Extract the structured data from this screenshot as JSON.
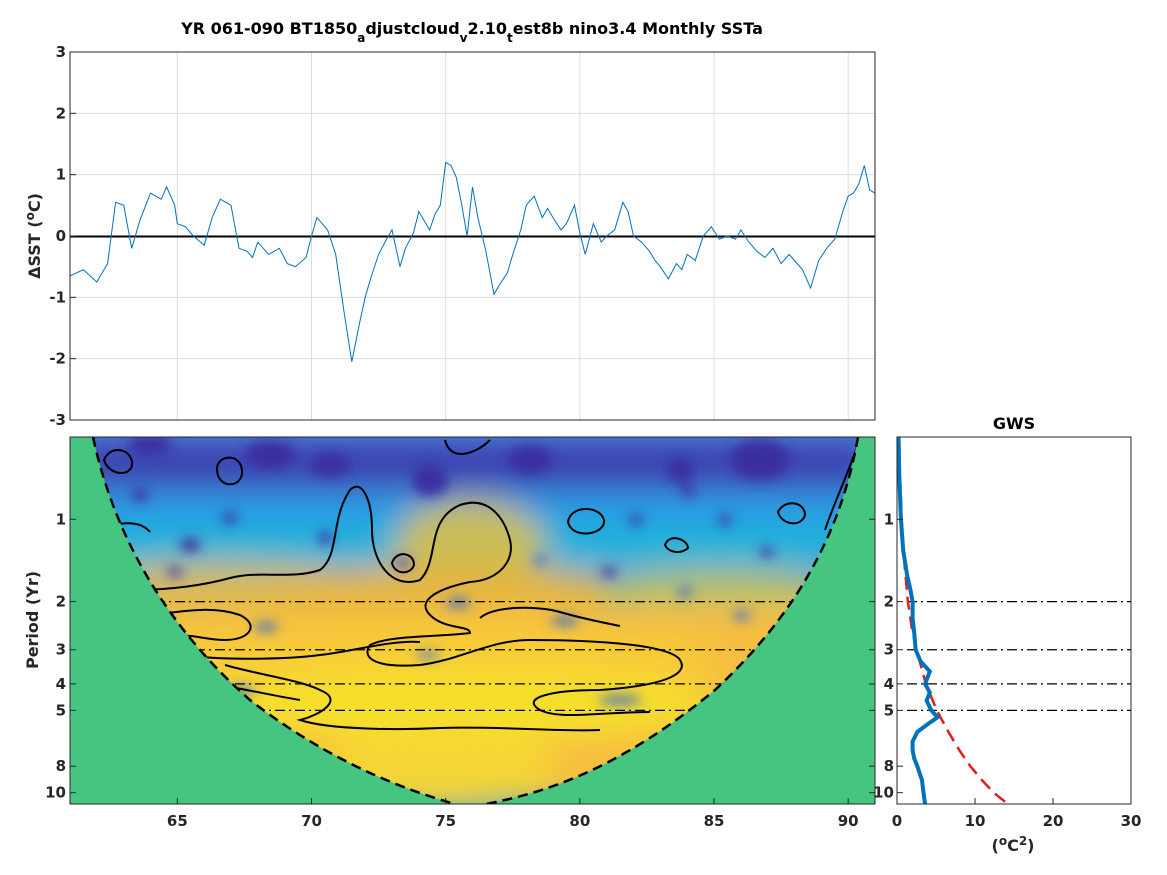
{
  "chart_data": [
    {
      "type": "line",
      "title": {
        "prefix": "YR 061-090 BT1850",
        "sub1": "a",
        "mid1": "djustcloud",
        "sub2": "v",
        "mid2": "2.10",
        "sub3": "t",
        "suffix": "est8b nino3.4 Monthly SSTa"
      },
      "xlabel": "",
      "ylabel": {
        "pre": "ΔSST (",
        "sup": "o",
        "post": "C)"
      },
      "xlim": [
        61,
        91
      ],
      "ylim": [
        -3,
        3
      ],
      "yticks": [
        -3,
        -2,
        -1,
        0,
        1,
        2,
        3
      ],
      "grid": true,
      "color": "#0072BD",
      "zero_line": 0,
      "series": [
        {
          "x": [
            61,
            61.5,
            62,
            62.4,
            62.7,
            63,
            63.3,
            63.6,
            64,
            64.4,
            64.6,
            64.9,
            65,
            65.3,
            65.6,
            66,
            66.3,
            66.6,
            67,
            67.3,
            67.6,
            67.8,
            68,
            68.4,
            68.8,
            69.1,
            69.4,
            69.8,
            70,
            70.2,
            70.6,
            70.9,
            71.2,
            71.5,
            71.8,
            72,
            72.2,
            72.5,
            72.8,
            73,
            73.3,
            73.5,
            73.8,
            74,
            74.2,
            74.4,
            74.6,
            74.8,
            75,
            75.2,
            75.4,
            75.6,
            75.8,
            76,
            76.2,
            76.5,
            76.8,
            77,
            77.3,
            77.5,
            77.8,
            78,
            78.3,
            78.6,
            78.8,
            79,
            79.3,
            79.5,
            79.8,
            80,
            80.2,
            80.5,
            80.8,
            81,
            81.3,
            81.6,
            81.8,
            82,
            82.3,
            82.6,
            82.8,
            83,
            83.3,
            83.6,
            83.8,
            84,
            84.3,
            84.6,
            84.9,
            85.2,
            85.5,
            85.8,
            86,
            86.3,
            86.6,
            86.9,
            87.2,
            87.5,
            87.8,
            88,
            88.3,
            88.6,
            88.9,
            89.2,
            89.5,
            89.8,
            90,
            90.2,
            90.4,
            90.6,
            90.8,
            91
          ],
          "y": [
            -0.65,
            -0.55,
            -0.75,
            -0.45,
            0.55,
            0.5,
            -0.2,
            0.25,
            0.7,
            0.6,
            0.8,
            0.5,
            0.2,
            0.15,
            0,
            -0.15,
            0.3,
            0.6,
            0.5,
            -0.2,
            -0.25,
            -0.35,
            -0.1,
            -0.3,
            -0.2,
            -0.45,
            -0.5,
            -0.35,
            0,
            0.3,
            0.1,
            -0.3,
            -1.2,
            -2.05,
            -1.4,
            -1.0,
            -0.7,
            -0.3,
            -0.05,
            0.1,
            -0.5,
            -0.2,
            0.05,
            0.4,
            0.25,
            0.1,
            0.35,
            0.5,
            1.2,
            1.15,
            0.95,
            0.5,
            0.0,
            0.8,
            0.3,
            -0.25,
            -0.95,
            -0.8,
            -0.6,
            -0.3,
            0.1,
            0.5,
            0.65,
            0.3,
            0.45,
            0.3,
            0.1,
            0.2,
            0.5,
            0.05,
            -0.3,
            0.2,
            -0.1,
            0.0,
            0.1,
            0.55,
            0.4,
            0.0,
            -0.1,
            -0.25,
            -0.4,
            -0.5,
            -0.7,
            -0.45,
            -0.55,
            -0.3,
            -0.4,
            0.0,
            0.15,
            -0.05,
            0.0,
            -0.05,
            0.1,
            -0.1,
            -0.25,
            -0.35,
            -0.2,
            -0.45,
            -0.3,
            -0.4,
            -0.55,
            -0.85,
            -0.4,
            -0.2,
            -0.05,
            0.4,
            0.65,
            0.7,
            0.85,
            1.15,
            0.75,
            0.7
          ]
        }
      ]
    },
    {
      "type": "heatmap",
      "xlabel": "",
      "ylabel": "Period (Yr)",
      "xlim": [
        61,
        91
      ],
      "xticks": [
        65,
        70,
        75,
        80,
        85,
        90
      ],
      "yscale": "log",
      "ylim": [
        0.5,
        11
      ],
      "yticks": [
        1,
        2,
        3,
        4,
        5,
        8,
        10
      ],
      "reference_periods": [
        2,
        3,
        4,
        5
      ],
      "colormap": "parula",
      "outside_cone_color": "#45C580"
    },
    {
      "type": "line",
      "title": "GWS",
      "xlabel": {
        "pre": "(",
        "sup1": "o",
        "mid": "C",
        "sup2": "2",
        "post": ")"
      },
      "ylabel": "",
      "xlim": [
        0,
        30
      ],
      "xticks": [
        0,
        10,
        20,
        30
      ],
      "yscale": "log",
      "ylim": [
        0.5,
        11
      ],
      "yticks": [
        1,
        2,
        3,
        4,
        5,
        8,
        10
      ],
      "reference_periods": [
        2,
        3,
        4,
        5
      ],
      "series": [
        {
          "color": "#0072BD",
          "style": "solid",
          "period": [
            0.5,
            0.7,
            1,
            1.3,
            1.6,
            1.8,
            2,
            2.3,
            2.6,
            3,
            3.3,
            3.6,
            4,
            4.3,
            4.6,
            5,
            5.3,
            5.6,
            6,
            6.5,
            7,
            7.5,
            8,
            9,
            10,
            11
          ],
          "power": [
            0.2,
            0.3,
            0.5,
            0.8,
            1.3,
            1.7,
            2.0,
            2.0,
            2.2,
            2.4,
            3.0,
            4.2,
            3.6,
            4.2,
            3.8,
            4.4,
            5.2,
            4.0,
            2.6,
            2.0,
            2.0,
            2.2,
            2.6,
            3.2,
            3.4,
            3.6
          ]
        },
        {
          "color": "#E41A1C",
          "style": "dashed",
          "period": [
            0.5,
            0.7,
            1,
            1.5,
            2,
            2.5,
            3,
            4,
            5,
            6,
            7,
            8,
            9,
            10,
            11
          ],
          "power": [
            0.25,
            0.4,
            0.6,
            1.0,
            1.4,
            1.9,
            2.5,
            3.7,
            5.1,
            6.6,
            8.0,
            9.4,
            10.9,
            12.4,
            14.2
          ]
        }
      ]
    }
  ]
}
